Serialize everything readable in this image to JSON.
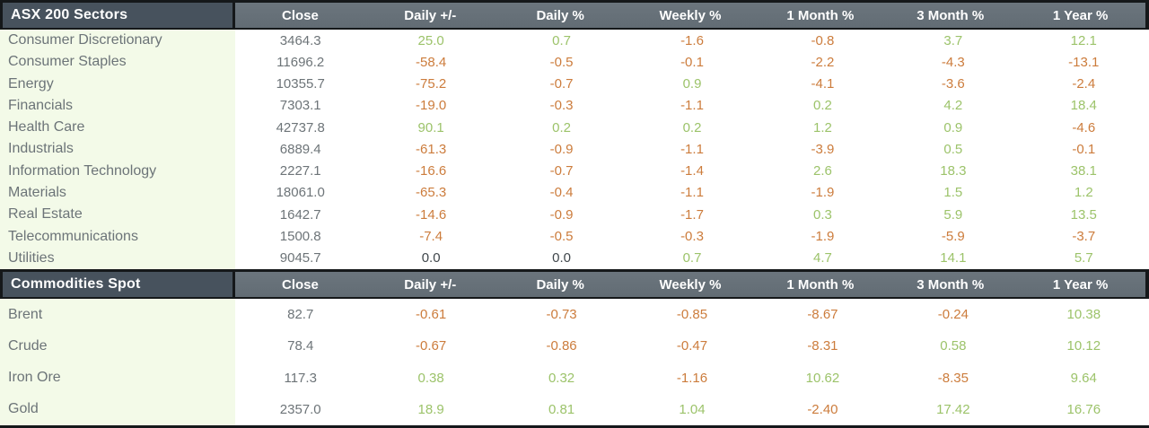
{
  "colors": {
    "header_dark_bg": "#47525d",
    "header_light_bg": "#626c74",
    "header_text": "#ffffff",
    "label_col_bg": "#f3fae8",
    "label_text": "#6c7478",
    "neutral_value": "#6d7478",
    "positive": "#9cc36a",
    "negative": "#cc7c3c",
    "zero": "#40474c",
    "border": "#15181a"
  },
  "chart_data": [
    {
      "type": "table",
      "title": "ASX 200 Sectors",
      "columns": [
        "Close",
        "Daily +/-",
        "Daily %",
        "Weekly %",
        "1 Month %",
        "3 Month %",
        "1 Year %"
      ],
      "rows": [
        {
          "label": "Consumer Discretionary",
          "values": [
            "3464.3",
            "25.0",
            "0.7",
            "-1.6",
            "-0.8",
            "3.7",
            "12.1"
          ]
        },
        {
          "label": "Consumer Staples",
          "values": [
            "11696.2",
            "-58.4",
            "-0.5",
            "-0.1",
            "-2.2",
            "-4.3",
            "-13.1"
          ]
        },
        {
          "label": "Energy",
          "values": [
            "10355.7",
            "-75.2",
            "-0.7",
            "0.9",
            "-4.1",
            "-3.6",
            "-2.4"
          ]
        },
        {
          "label": "Financials",
          "values": [
            "7303.1",
            "-19.0",
            "-0.3",
            "-1.1",
            "0.2",
            "4.2",
            "18.4"
          ]
        },
        {
          "label": "Health Care",
          "values": [
            "42737.8",
            "90.1",
            "0.2",
            "0.2",
            "1.2",
            "0.9",
            "-4.6"
          ]
        },
        {
          "label": "Industrials",
          "values": [
            "6889.4",
            "-61.3",
            "-0.9",
            "-1.1",
            "-3.9",
            "0.5",
            "-0.1"
          ]
        },
        {
          "label": "Information Technology",
          "values": [
            "2227.1",
            "-16.6",
            "-0.7",
            "-1.4",
            "2.6",
            "18.3",
            "38.1"
          ]
        },
        {
          "label": "Materials",
          "values": [
            "18061.0",
            "-65.3",
            "-0.4",
            "-1.1",
            "-1.9",
            "1.5",
            "1.2"
          ]
        },
        {
          "label": "Real Estate",
          "values": [
            "1642.7",
            "-14.6",
            "-0.9",
            "-1.7",
            "0.3",
            "5.9",
            "13.5"
          ]
        },
        {
          "label": "Telecommunications",
          "values": [
            "1500.8",
            "-7.4",
            "-0.5",
            "-0.3",
            "-1.9",
            "-5.9",
            "-3.7"
          ]
        },
        {
          "label": "Utilities",
          "values": [
            "9045.7",
            "0.0",
            "0.0",
            "0.7",
            "4.7",
            "14.1",
            "5.7"
          ]
        }
      ]
    },
    {
      "type": "table",
      "title": "Commodities Spot",
      "columns": [
        "Close",
        "Daily +/-",
        "Daily %",
        "Weekly %",
        "1 Month %",
        "3 Month %",
        "1 Year %"
      ],
      "rows": [
        {
          "label": "Brent",
          "values": [
            "82.7",
            "-0.61",
            "-0.73",
            "-0.85",
            "-8.67",
            "-0.24",
            "10.38"
          ]
        },
        {
          "label": "Crude",
          "values": [
            "78.4",
            "-0.67",
            "-0.86",
            "-0.47",
            "-8.31",
            "0.58",
            "10.12"
          ]
        },
        {
          "label": "Iron Ore",
          "values": [
            "117.3",
            "0.38",
            "0.32",
            "-1.16",
            "10.62",
            "-8.35",
            "9.64"
          ]
        },
        {
          "label": "Gold",
          "values": [
            "2357.0",
            "18.9",
            "0.81",
            "1.04",
            "-2.40",
            "17.42",
            "16.76"
          ]
        }
      ]
    }
  ]
}
